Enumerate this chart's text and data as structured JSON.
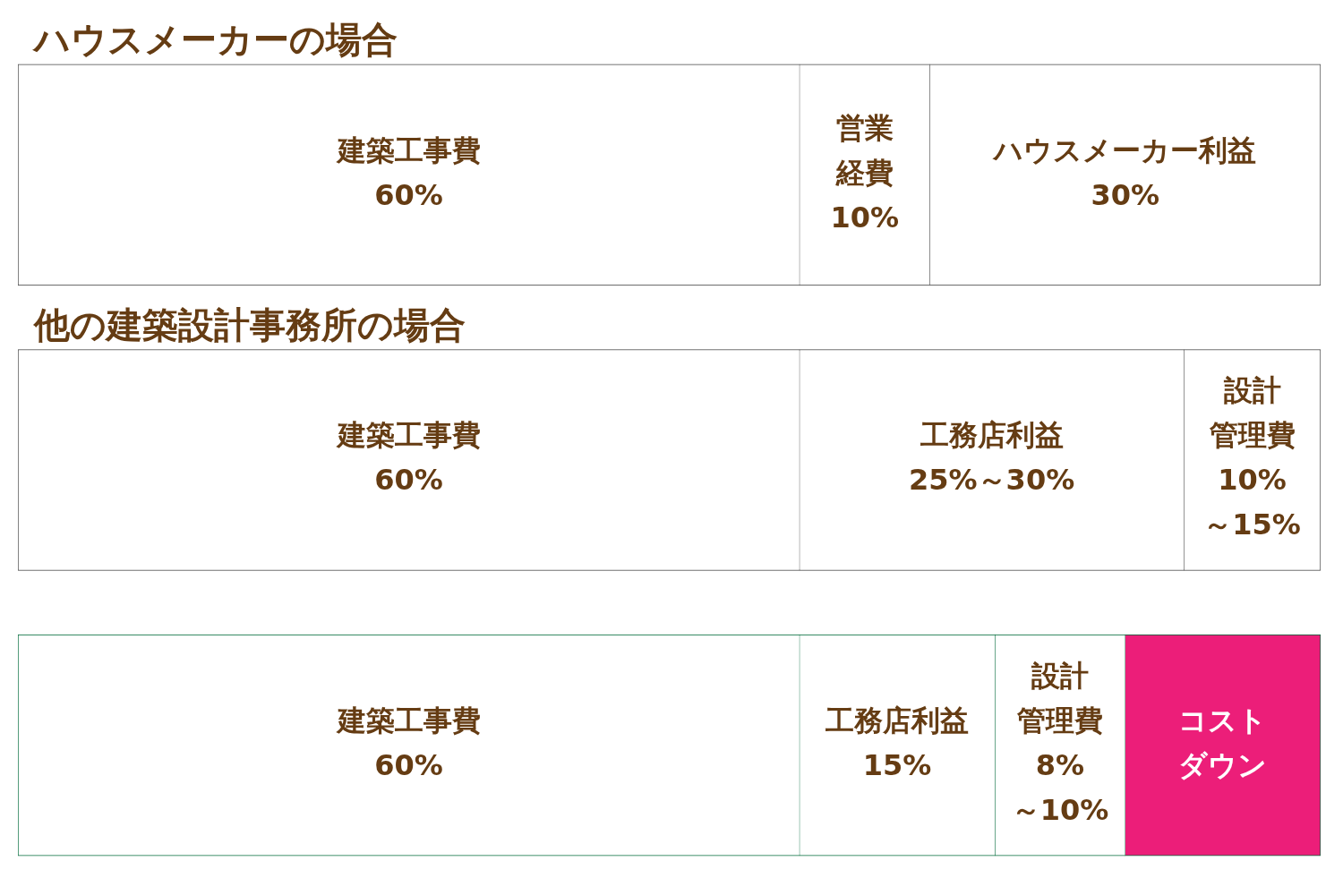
{
  "chart_data": {
    "type": "bar",
    "orientation": "horizontal",
    "stacked": true,
    "tick_labels": "y",
    "categories": [
      "ハウスメーカーの場合",
      "他の建築設計事務所の場合",
      null
    ],
    "series": [
      {
        "name": "建築工事費",
        "color": "#ffffff",
        "values": [
          60,
          60,
          60
        ],
        "value_labels": [
          "60%",
          "60%",
          "60%"
        ]
      },
      {
        "name": "営業経費",
        "color": "#ffffff",
        "values": [
          10,
          null,
          null
        ],
        "value_labels": [
          "10%",
          null,
          null
        ]
      },
      {
        "name": "ハウスメーカー利益",
        "color": "#ffffff",
        "values": [
          30,
          null,
          null
        ],
        "value_labels": [
          "30%",
          null,
          null
        ]
      },
      {
        "name": "工務店利益",
        "color": "#ffffff",
        "values": [
          null,
          29.5,
          15
        ],
        "value_labels": [
          null,
          "25%～30%",
          "15%"
        ]
      },
      {
        "name": "設計管理費",
        "color": "#ffffff",
        "values": [
          null,
          10.5,
          10
        ],
        "value_labels": [
          null,
          "10%～15%",
          "8%～10%"
        ]
      },
      {
        "name": "コストダウン",
        "color": "#ec1e79",
        "values": [
          null,
          null,
          15
        ],
        "value_labels": [
          null,
          null,
          null
        ]
      }
    ]
  }
}
